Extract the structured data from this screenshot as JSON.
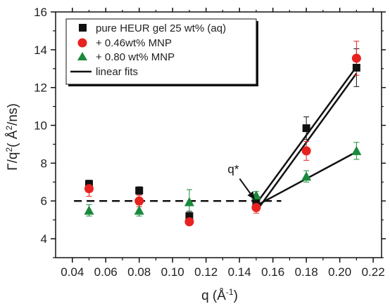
{
  "chart_data": {
    "type": "scatter",
    "xlabel": "q (Å",
    "xlabel_sup": "-1",
    "xlabel_close": ")",
    "ylabel_main": "Γ/q",
    "ylabel_sup": "2",
    "ylabel_rest": "( Å",
    "ylabel_sup2": "2",
    "ylabel_end": "/ns)",
    "xlim": [
      0.03,
      0.225
    ],
    "ylim": [
      3,
      16
    ],
    "xticks": [
      0.04,
      0.06,
      0.08,
      0.1,
      0.12,
      0.14,
      0.16,
      0.18,
      0.2,
      0.22
    ],
    "xtick_labels": [
      "0.04",
      "0.06",
      "0.08",
      "0.10",
      "0.12",
      "0.14",
      "0.16",
      "0.18",
      "0.20",
      "0.22"
    ],
    "yticks": [
      4,
      6,
      8,
      10,
      12,
      14,
      16
    ],
    "ytick_labels": [
      "4",
      "6",
      "8",
      "10",
      "12",
      "14",
      "16"
    ],
    "legend_position": "top-left",
    "series": [
      {
        "name": "pure HEUR gel 25 wt% (aq)",
        "marker": "square",
        "color": "#111111",
        "errcolor": "#111111",
        "x": [
          0.05,
          0.08,
          0.11,
          0.15,
          0.18,
          0.21
        ],
        "y": [
          6.9,
          6.55,
          5.2,
          5.95,
          9.85,
          13.05
        ],
        "err": [
          0.2,
          0.2,
          0.25,
          0.3,
          0.6,
          1.0
        ]
      },
      {
        "name": "+ 0.46wt% MNP",
        "marker": "circle",
        "color": "#e8221f",
        "errcolor": "#e8221f",
        "x": [
          0.05,
          0.08,
          0.11,
          0.15,
          0.18,
          0.21
        ],
        "y": [
          6.65,
          6.0,
          4.9,
          5.65,
          8.65,
          13.55
        ],
        "err": [
          0.4,
          0.3,
          0.15,
          0.3,
          0.5,
          0.9
        ]
      },
      {
        "name": "+ 0.80 wt% MNP",
        "marker": "triangle",
        "color": "#1a8a3c",
        "errcolor": "#1a8a3c",
        "x": [
          0.05,
          0.08,
          0.11,
          0.15,
          0.18,
          0.21
        ],
        "y": [
          5.5,
          5.5,
          5.95,
          6.3,
          7.3,
          8.65
        ],
        "err": [
          0.3,
          0.3,
          0.65,
          0.2,
          0.3,
          0.45
        ]
      }
    ],
    "fits_legend": "linear fits",
    "fit_lines": [
      {
        "x": [
          0.15,
          0.21
        ],
        "y": [
          5.85,
          13.1
        ]
      },
      {
        "x": [
          0.15,
          0.21
        ],
        "y": [
          5.45,
          12.75
        ]
      },
      {
        "x": [
          0.15,
          0.21
        ],
        "y": [
          5.75,
          8.6
        ]
      }
    ],
    "dashed_line": {
      "x": [
        0.041,
        0.165
      ],
      "y": [
        6.0,
        6.0
      ]
    },
    "annotation": {
      "text": "q*",
      "x": 0.138,
      "y": 7.4,
      "arrow_to": [
        0.15,
        5.85
      ]
    }
  }
}
